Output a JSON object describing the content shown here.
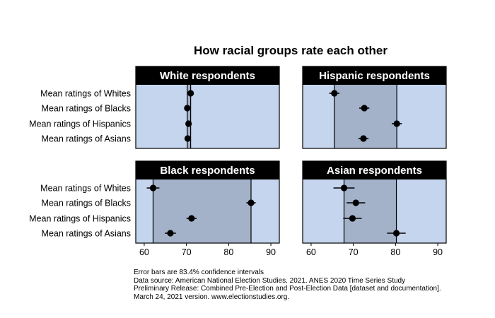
{
  "chart_data": {
    "type": "dot-plot-with-error-bars",
    "title": "How racial groups rate each other",
    "xlim": [
      58,
      92
    ],
    "ticks": [
      60,
      70,
      80,
      90
    ],
    "row_labels": [
      "Mean ratings of Whites",
      "Mean ratings of Blacks",
      "Mean ratings of Hispanics",
      "Mean ratings of Asians"
    ],
    "panels": [
      {
        "title": "White respondents",
        "values": [
          71.0,
          70.2,
          70.5,
          70.3
        ],
        "errors": [
          0.6,
          0.6,
          0.6,
          0.6
        ]
      },
      {
        "title": "Hispanic respondents",
        "values": [
          65.5,
          72.6,
          80.3,
          72.4
        ],
        "errors": [
          1.2,
          1.2,
          1.2,
          1.2
        ]
      },
      {
        "title": "Black respondents",
        "values": [
          62.1,
          85.3,
          71.2,
          66.2
        ],
        "errors": [
          1.5,
          1.1,
          1.2,
          1.3
        ]
      },
      {
        "title": "Asian respondents",
        "values": [
          67.8,
          70.6,
          69.8,
          80.2
        ],
        "errors": [
          2.5,
          2.2,
          2.2,
          2.2
        ]
      }
    ],
    "colors": {
      "background": "#c5d5ee",
      "range_band": "#a3b2c9",
      "header": "#000000",
      "point": "#000000"
    }
  },
  "notes": [
    "Error bars are 83.4% confidence intervals",
    "Data source: American National Election Studies. 2021. ANES 2020 Time Series Study",
    "Preliminary Release: Combined Pre-Election and Post-Election Data [dataset and documentation].",
    "March 24, 2021 version. www.electionstudies.org."
  ]
}
